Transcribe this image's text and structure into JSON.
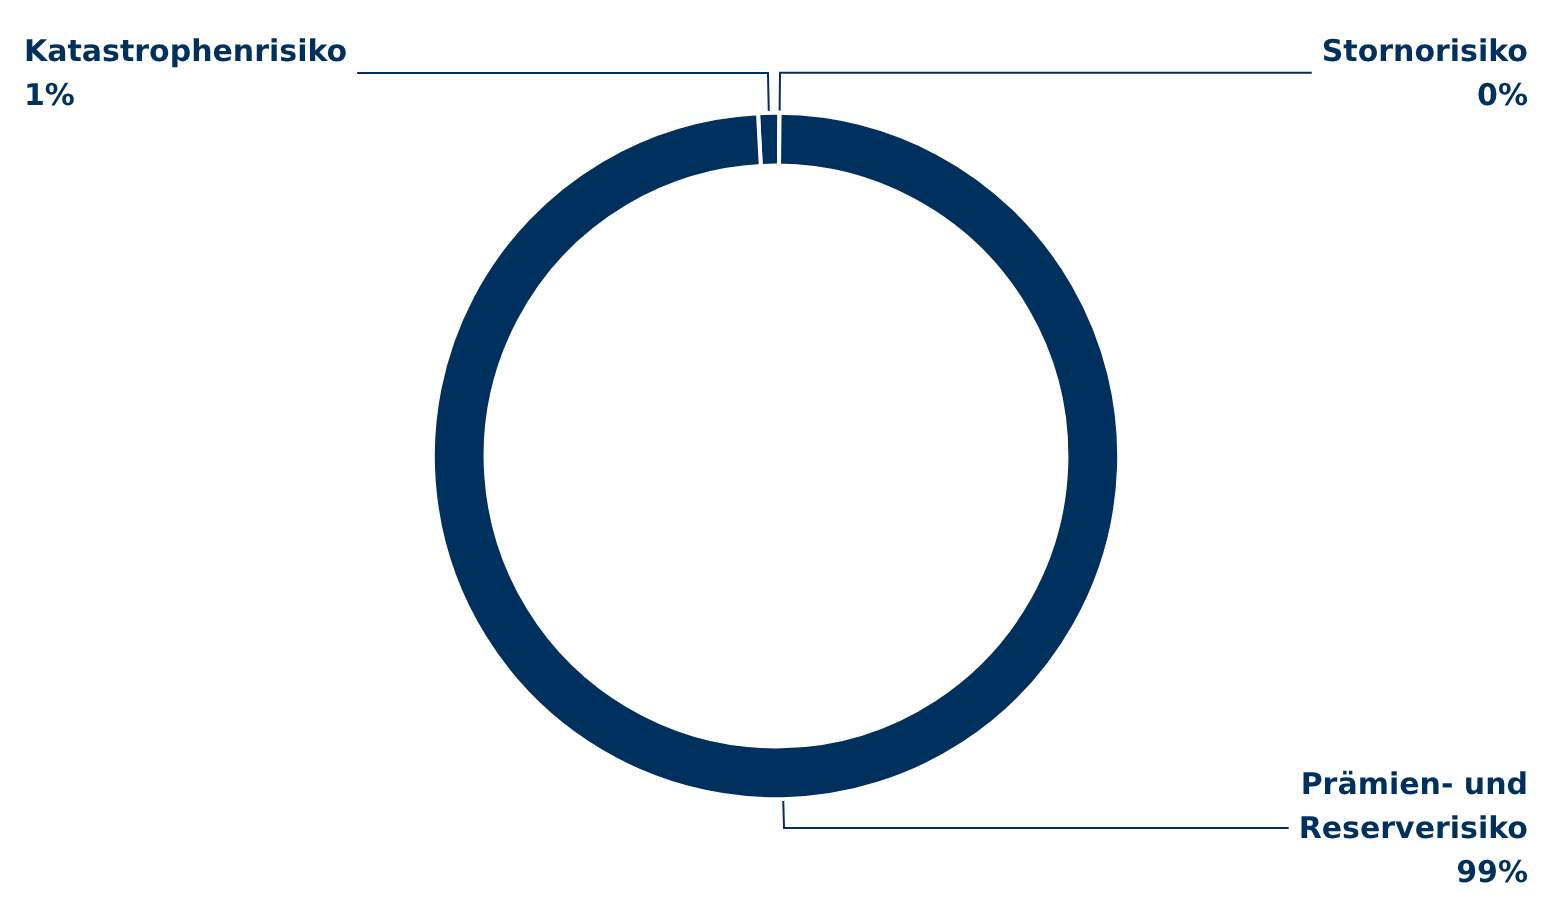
{
  "chart_data": {
    "type": "donut",
    "categories": [
      "Katastrophenrisiko",
      "Stornorisiko",
      "Prämien- und\nReserverisiko"
    ],
    "values": [
      1,
      0,
      99
    ],
    "value_labels": [
      "1%",
      "0%",
      "99%"
    ],
    "colors": [
      "#00305e",
      "#00305e",
      "#00305e"
    ],
    "legend": false
  }
}
